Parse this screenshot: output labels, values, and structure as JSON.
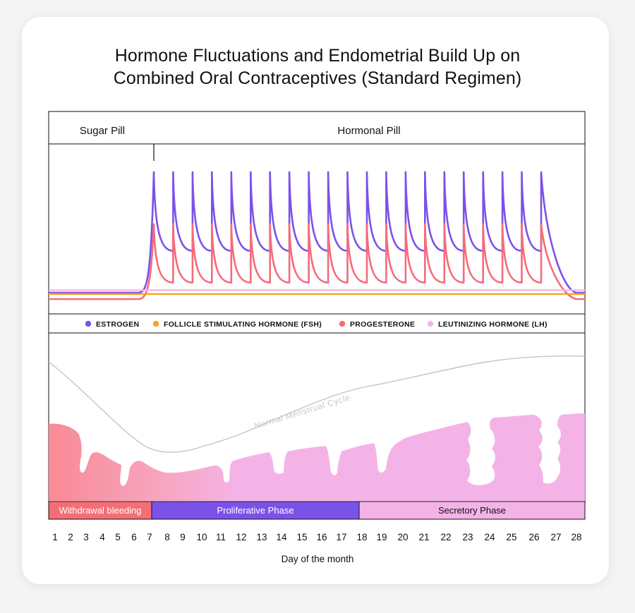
{
  "title_lines": [
    "Hormone Fluctuations and Endometrial Build Up on",
    "Combined Oral Contraceptives (Standard Regimen)"
  ],
  "chart_data": {
    "type": "line",
    "title": "Hormone Fluctuations and Endometrial Build Up on Combined Oral Contraceptives (Standard Regimen)",
    "xlabel": "Day of the month",
    "x_ticks": [
      1,
      2,
      3,
      4,
      5,
      6,
      7,
      8,
      9,
      10,
      11,
      12,
      13,
      14,
      15,
      16,
      17,
      18,
      19,
      20,
      21,
      22,
      23,
      24,
      25,
      26,
      27,
      28
    ],
    "pill_periods": [
      {
        "label": "Sugar Pill",
        "from_day": 1,
        "to_day": 7
      },
      {
        "label": "Hormonal Pill",
        "from_day": 7,
        "to_day": 28
      }
    ],
    "legend": [
      {
        "name": "ESTROGEN",
        "color": "#7B52E8"
      },
      {
        "name": "FOLLICLE STIMULATING HORMONE (FSH)",
        "color": "#F5A623"
      },
      {
        "name": "PROGESTERONE",
        "color": "#F56B7A"
      },
      {
        "name": "LEUTINIZING HORMONE (LH)",
        "color": "#F4B6E8"
      }
    ],
    "series": [
      {
        "name": "ESTROGEN",
        "color": "#7B52E8",
        "baseline": 0.05,
        "pill_peak": 1.0,
        "pill_trough": 0.38,
        "doses": 21
      },
      {
        "name": "PROGESTERONE",
        "color": "#F56B7A",
        "baseline": 0.0,
        "pill_peak": 0.59,
        "pill_trough": 0.13,
        "doses": 21
      },
      {
        "name": "FOLLICLE STIMULATING HORMONE (FSH)",
        "color": "#F5A623",
        "level": 0.04
      },
      {
        "name": "LEUTINIZING HORMONE (LH)",
        "color": "#F4B6E8",
        "level": 0.07
      }
    ],
    "endometrium_label": "Normal Menstrual Cycle",
    "phases": [
      {
        "label": "Withdrawal bleeding",
        "from_day": 1,
        "to_day": 7,
        "color": "#F46E75",
        "text_color": "#ffffff"
      },
      {
        "label": "Proliferative Phase",
        "from_day": 7,
        "to_day": 18,
        "color": "#7B52E8",
        "text_color": "#ffffff"
      },
      {
        "label": "Secretory Phase",
        "from_day": 18,
        "to_day": 28,
        "color": "#F4B3E7",
        "text_color": "#111111"
      }
    ]
  }
}
